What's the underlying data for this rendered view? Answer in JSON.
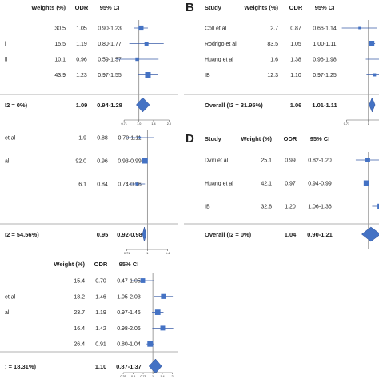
{
  "chart_data": [
    {
      "type": "forest",
      "panel_label": "",
      "columns": {
        "study": "",
        "weight": "Weights (%)",
        "odr": "ODR",
        "ci": "95% CI"
      },
      "rows": [
        {
          "study": "",
          "weight": "30.5",
          "odr": "1.05",
          "ci": "0.90-1.23",
          "or": 1.05,
          "lo": 0.9,
          "hi": 1.23
        },
        {
          "study": "l",
          "weight": "15.5",
          "odr": "1.19",
          "ci": "0.80-1.77",
          "or": 1.19,
          "lo": 0.8,
          "hi": 1.77
        },
        {
          "study": "ll",
          "weight": "10.1",
          "odr": "0.96",
          "ci": "0.59-1.57",
          "or": 0.96,
          "lo": 0.59,
          "hi": 1.57
        },
        {
          "study": "",
          "weight": "43.9",
          "odr": "1.23",
          "ci": "0.97-1.55",
          "or": 1.23,
          "lo": 0.97,
          "hi": 1.55
        }
      ],
      "overall": {
        "label": "I2 = 0%)",
        "odr": "1.09",
        "ci": "0.94-1.28",
        "or": 1.09,
        "lo": 0.94,
        "hi": 1.28
      },
      "xticks": [
        "0.71",
        "1.0",
        "1.4",
        "2.0"
      ],
      "xtick_values": [
        0.71,
        1.0,
        1.4,
        2.0
      ],
      "xlim": [
        0.6,
        2.1
      ],
      "xscale": "log",
      "color": "#4472c4"
    },
    {
      "type": "forest",
      "panel_label": "B",
      "columns": {
        "study": "Study",
        "weight": "Weights (%)",
        "odr": "ODR",
        "ci": "95% CI"
      },
      "rows": [
        {
          "study": "Coll et al",
          "weight": "2.7",
          "odr": "0.87",
          "ci": "0.66-1.14",
          "or": 0.87,
          "lo": 0.66,
          "hi": 1.14
        },
        {
          "study": "Rodrigo et al",
          "weight": "83.5",
          "odr": "1.05",
          "ci": "1.00-1.11",
          "or": 1.05,
          "lo": 1.0,
          "hi": 1.11
        },
        {
          "study": "Huang et al",
          "weight": "1.6",
          "odr": "1.38",
          "ci": "0.96-1.98",
          "or": 1.38,
          "lo": 0.96,
          "hi": 1.98
        },
        {
          "study": "IB",
          "weight": "12.3",
          "odr": "1.10",
          "ci": "0.97-1.25",
          "or": 1.1,
          "lo": 0.97,
          "hi": 1.25
        }
      ],
      "overall": {
        "label": "Overall (I2 = 31.95%)",
        "odr": "1.06",
        "ci": "1.01-1.11",
        "or": 1.06,
        "lo": 1.01,
        "hi": 1.11
      },
      "xticks": [
        "0.71",
        "1",
        "1.4"
      ],
      "xtick_values": [
        0.71,
        1.0,
        1.4
      ],
      "xlim": [
        0.6,
        2.1
      ],
      "xscale": "log",
      "color": "#4472c4"
    },
    {
      "type": "forest",
      "panel_label": "",
      "columns": {
        "study": "",
        "weight": "Weights (%)",
        "odr": "ODR",
        "ci": "95% CI"
      },
      "rows": [
        {
          "study": "et al",
          "weight": "1.9",
          "odr": "0.88",
          "ci": "0.70-1.11",
          "or": 0.88,
          "lo": 0.7,
          "hi": 1.11
        },
        {
          "study": "al",
          "weight": "92.0",
          "odr": "0.96",
          "ci": "0.93-0.99",
          "or": 0.96,
          "lo": 0.93,
          "hi": 0.99
        },
        {
          "study": "",
          "weight": "6.1",
          "odr": "0.84",
          "ci": "0.74-0.96",
          "or": 0.84,
          "lo": 0.74,
          "hi": 0.96
        }
      ],
      "overall": {
        "label": "I2 = 54.56%)",
        "odr": "0.95",
        "ci": "0.92-0.98",
        "or": 0.95,
        "lo": 0.92,
        "hi": 0.98
      },
      "xticks": [
        "0.71",
        "1",
        "1.4"
      ],
      "xtick_values": [
        0.71,
        1.0,
        1.4
      ],
      "xlim": [
        0.6,
        2.1
      ],
      "xscale": "log",
      "color": "#4472c4"
    },
    {
      "type": "forest",
      "panel_label": "D",
      "columns": {
        "study": "Study",
        "weight": "Weight (%)",
        "odr": "ODR",
        "ci": "95% CI"
      },
      "rows": [
        {
          "study": "Dviri et al",
          "weight": "25.1",
          "odr": "0.99",
          "ci": "0.82-1.20",
          "or": 0.99,
          "lo": 0.82,
          "hi": 1.2
        },
        {
          "study": "Huang et al",
          "weight": "42.1",
          "odr": "0.97",
          "ci": "0.94-0.99",
          "or": 0.97,
          "lo": 0.94,
          "hi": 0.99
        },
        {
          "study": "IB",
          "weight": "32.8",
          "odr": "1.20",
          "ci": "1.06-1.36",
          "or": 1.2,
          "lo": 1.06,
          "hi": 1.36
        }
      ],
      "overall": {
        "label": "Overall (I2 = 0%)",
        "odr": "1.04",
        "ci": "0.90-1.21",
        "or": 1.04,
        "lo": 0.9,
        "hi": 1.21
      },
      "xticks": [],
      "xtick_values": [],
      "xlim": [
        0.6,
        2.1
      ],
      "xscale": "log",
      "color": "#4472c4"
    },
    {
      "type": "forest",
      "panel_label": "",
      "columns": {
        "study": "",
        "weight": "Weight (%)",
        "odr": "ODR",
        "ci": "95% CI"
      },
      "rows": [
        {
          "study": "",
          "weight": "15.4",
          "odr": "0.70",
          "ci": "0.47-1.05",
          "or": 0.7,
          "lo": 0.47,
          "hi": 1.05
        },
        {
          "study": "et al",
          "weight": "18.2",
          "odr": "1.46",
          "ci": "1.05-2.03",
          "or": 1.46,
          "lo": 1.05,
          "hi": 2.03
        },
        {
          "study": "al",
          "weight": "23.7",
          "odr": "1.19",
          "ci": "0.97-1.46",
          "or": 1.19,
          "lo": 0.97,
          "hi": 1.46
        },
        {
          "study": "",
          "weight": "16.4",
          "odr": "1.42",
          "ci": "0.98-2.06",
          "or": 1.42,
          "lo": 0.98,
          "hi": 2.06
        },
        {
          "study": "",
          "weight": "26.4",
          "odr": "0.91",
          "ci": "0.80-1.04",
          "or": 0.91,
          "lo": 0.8,
          "hi": 1.04
        }
      ],
      "overall": {
        "label": ": = 18.31%)",
        "odr": "1.10",
        "ci": "0.87-1.37",
        "or": 1.1,
        "lo": 0.87,
        "hi": 1.37
      },
      "xticks": [
        "0.35",
        "0.5",
        "0.71",
        "1",
        "1.4",
        "2"
      ],
      "xtick_values": [
        0.35,
        0.5,
        0.71,
        1.0,
        1.4,
        2.0
      ],
      "xlim": [
        0.33,
        2.4
      ],
      "xscale": "log",
      "color": "#4472c4"
    }
  ]
}
